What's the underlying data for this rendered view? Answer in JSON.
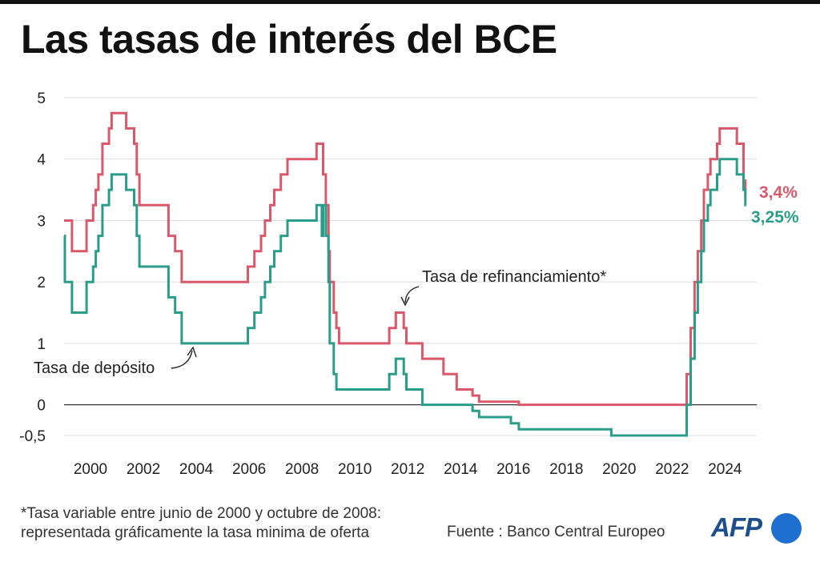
{
  "title": "Las tasas de interés del BCE",
  "footnote": {
    "line1": "*Tasa variable entre junio de 2000 y octubre de 2008:",
    "line2": "representada gráficamente la tasa minima de oferta"
  },
  "source": "Fuente : Banco Central Europeo",
  "logo": {
    "text": "AFP",
    "color": "#1f4e8c",
    "dot_color": "#1f6fd0"
  },
  "chart_data": {
    "type": "line",
    "xlim": [
      1999,
      2025.2
    ],
    "ylim": [
      -0.6,
      5
    ],
    "yticks": [
      {
        "value": 5,
        "label": "5"
      },
      {
        "value": 4,
        "label": "4"
      },
      {
        "value": 3,
        "label": "3"
      },
      {
        "value": 2,
        "label": "2"
      },
      {
        "value": 1,
        "label": "1"
      },
      {
        "value": 0,
        "label": "0"
      },
      {
        "value": -0.5,
        "label": "-0,5"
      }
    ],
    "xticks": [
      {
        "value": 2000,
        "label": "2000"
      },
      {
        "value": 2002,
        "label": "2002"
      },
      {
        "value": 2004,
        "label": "2004"
      },
      {
        "value": 2006,
        "label": "2006"
      },
      {
        "value": 2008,
        "label": "2008"
      },
      {
        "value": 2010,
        "label": "2010"
      },
      {
        "value": 2012,
        "label": "2012"
      },
      {
        "value": 2014,
        "label": "2014"
      },
      {
        "value": 2016,
        "label": "2016"
      },
      {
        "value": 2018,
        "label": "2018"
      },
      {
        "value": 2020,
        "label": "2020"
      },
      {
        "value": 2022,
        "label": "2022"
      },
      {
        "value": 2024,
        "label": "2024"
      }
    ],
    "grid": true,
    "series": [
      {
        "name": "Tasa de refinanciamiento*",
        "color": "#d9586a",
        "end_label": "3,4%",
        "step_points": [
          [
            1999.0,
            3.0
          ],
          [
            1999.3,
            2.5
          ],
          [
            1999.85,
            3.0
          ],
          [
            2000.1,
            3.25
          ],
          [
            2000.2,
            3.5
          ],
          [
            2000.3,
            3.75
          ],
          [
            2000.45,
            4.25
          ],
          [
            2000.7,
            4.5
          ],
          [
            2000.8,
            4.75
          ],
          [
            2001.35,
            4.5
          ],
          [
            2001.65,
            4.25
          ],
          [
            2001.75,
            3.75
          ],
          [
            2001.85,
            3.25
          ],
          [
            2002.95,
            2.75
          ],
          [
            2003.2,
            2.5
          ],
          [
            2003.45,
            2.0
          ],
          [
            2005.95,
            2.25
          ],
          [
            2006.2,
            2.5
          ],
          [
            2006.45,
            2.75
          ],
          [
            2006.6,
            3.0
          ],
          [
            2006.8,
            3.25
          ],
          [
            2006.95,
            3.5
          ],
          [
            2007.2,
            3.75
          ],
          [
            2007.45,
            4.0
          ],
          [
            2008.55,
            4.25
          ],
          [
            2008.8,
            3.75
          ],
          [
            2008.9,
            3.25
          ],
          [
            2009.0,
            2.5
          ],
          [
            2009.05,
            2.0
          ],
          [
            2009.2,
            1.5
          ],
          [
            2009.3,
            1.25
          ],
          [
            2009.4,
            1.0
          ],
          [
            2011.3,
            1.25
          ],
          [
            2011.55,
            1.5
          ],
          [
            2011.85,
            1.25
          ],
          [
            2011.95,
            1.0
          ],
          [
            2012.55,
            0.75
          ],
          [
            2013.35,
            0.5
          ],
          [
            2013.85,
            0.25
          ],
          [
            2014.45,
            0.15
          ],
          [
            2014.7,
            0.05
          ],
          [
            2016.2,
            0.0
          ],
          [
            2022.55,
            0.5
          ],
          [
            2022.7,
            1.25
          ],
          [
            2022.85,
            2.0
          ],
          [
            2022.97,
            2.5
          ],
          [
            2023.1,
            3.0
          ],
          [
            2023.2,
            3.5
          ],
          [
            2023.35,
            3.75
          ],
          [
            2023.45,
            4.0
          ],
          [
            2023.7,
            4.25
          ],
          [
            2023.8,
            4.5
          ],
          [
            2024.45,
            4.25
          ],
          [
            2024.7,
            3.65
          ],
          [
            2024.77,
            3.4
          ],
          [
            2024.8,
            3.4
          ]
        ]
      },
      {
        "name": "Tasa de depósito",
        "color": "#2a9d8a",
        "end_label": "3,25%",
        "step_points": [
          [
            1999.0,
            2.75
          ],
          [
            1999.03,
            2.0
          ],
          [
            1999.3,
            1.5
          ],
          [
            1999.85,
            2.0
          ],
          [
            2000.1,
            2.25
          ],
          [
            2000.2,
            2.5
          ],
          [
            2000.3,
            2.75
          ],
          [
            2000.45,
            3.25
          ],
          [
            2000.7,
            3.5
          ],
          [
            2000.8,
            3.75
          ],
          [
            2001.35,
            3.5
          ],
          [
            2001.65,
            3.25
          ],
          [
            2001.75,
            2.75
          ],
          [
            2001.85,
            2.25
          ],
          [
            2002.95,
            1.75
          ],
          [
            2003.2,
            1.5
          ],
          [
            2003.45,
            1.0
          ],
          [
            2005.95,
            1.25
          ],
          [
            2006.2,
            1.5
          ],
          [
            2006.45,
            1.75
          ],
          [
            2006.6,
            2.0
          ],
          [
            2006.8,
            2.25
          ],
          [
            2006.95,
            2.5
          ],
          [
            2007.2,
            2.75
          ],
          [
            2007.45,
            3.0
          ],
          [
            2008.55,
            3.25
          ],
          [
            2008.75,
            2.75
          ],
          [
            2008.8,
            3.25
          ],
          [
            2008.9,
            2.75
          ],
          [
            2009.0,
            2.0
          ],
          [
            2009.05,
            1.0
          ],
          [
            2009.2,
            0.5
          ],
          [
            2009.3,
            0.25
          ],
          [
            2011.3,
            0.5
          ],
          [
            2011.55,
            0.75
          ],
          [
            2011.85,
            0.5
          ],
          [
            2011.95,
            0.25
          ],
          [
            2012.55,
            0.0
          ],
          [
            2014.45,
            -0.1
          ],
          [
            2014.7,
            -0.2
          ],
          [
            2015.9,
            -0.3
          ],
          [
            2016.2,
            -0.4
          ],
          [
            2019.7,
            -0.5
          ],
          [
            2022.55,
            0.0
          ],
          [
            2022.7,
            0.75
          ],
          [
            2022.85,
            1.5
          ],
          [
            2022.97,
            2.0
          ],
          [
            2023.1,
            2.5
          ],
          [
            2023.2,
            3.0
          ],
          [
            2023.35,
            3.25
          ],
          [
            2023.45,
            3.5
          ],
          [
            2023.7,
            3.75
          ],
          [
            2023.8,
            4.0
          ],
          [
            2024.45,
            3.75
          ],
          [
            2024.7,
            3.5
          ],
          [
            2024.77,
            3.25
          ],
          [
            2024.8,
            3.25
          ]
        ]
      }
    ],
    "annotations": [
      {
        "text": "Tasa de refinanciamiento*",
        "series": "refi"
      },
      {
        "text": "Tasa de depósito",
        "series": "deposit"
      }
    ]
  }
}
